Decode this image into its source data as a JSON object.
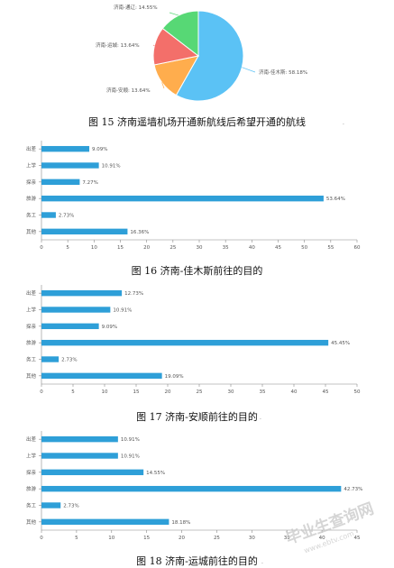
{
  "captions": {
    "fig15": "图 15 济南遥墙机场开通新航线后希望开通的航线",
    "fig16": "图 16 济南-佳木斯前往的目的",
    "fig17": "图 17 济南-安顺前往的目的",
    "fig18": "图 18 济南-运城前往的目的"
  },
  "marks": {
    "fig15": ".",
    "fig16": ".",
    "fig17": ".",
    "fig18": "."
  },
  "watermark": {
    "main": "毕业生查询网",
    "sub": "www.ebtv.com"
  },
  "chart_data": [
    {
      "type": "pie",
      "labels": [
        "济南-佳木斯",
        "济南-安顺",
        "济南-运城",
        "济南-通辽"
      ],
      "values": [
        58.18,
        13.64,
        13.64,
        14.55
      ],
      "data_labels": [
        "济南-佳木斯: 58.18%",
        "济南-安顺: 13.64%",
        "济南-运城: 13.64%",
        "济南-通辽: 14.55%"
      ],
      "colors": [
        "#5bc2f5",
        "#ffad4d",
        "#f36f6a",
        "#57d875"
      ]
    },
    {
      "type": "bar",
      "orientation": "horizontal",
      "categories": [
        "出差",
        "上学",
        "探亲",
        "旅游",
        "务工",
        "其他"
      ],
      "values": [
        9.09,
        10.91,
        7.27,
        53.64,
        2.73,
        16.36
      ],
      "data_labels": [
        "9.09%",
        "10.91%",
        "7.27%",
        "53.64%",
        "2.73%",
        "16.36%"
      ],
      "xlim": [
        0,
        60
      ],
      "xticks": [
        0,
        5,
        10,
        15,
        20,
        25,
        30,
        35,
        40,
        45,
        50,
        55,
        60
      ],
      "color": "#2e9fd8"
    },
    {
      "type": "bar",
      "orientation": "horizontal",
      "categories": [
        "出差",
        "上学",
        "探亲",
        "旅游",
        "务工",
        "其他"
      ],
      "values": [
        12.73,
        10.91,
        9.09,
        45.45,
        2.73,
        19.09
      ],
      "data_labels": [
        "12.73%",
        "10.91%",
        "9.09%",
        "45.45%",
        "2.73%",
        "19.09%"
      ],
      "xlim": [
        0,
        50
      ],
      "xticks": [
        0,
        5,
        10,
        15,
        20,
        25,
        30,
        35,
        40,
        45,
        50
      ],
      "color": "#2e9fd8"
    },
    {
      "type": "bar",
      "orientation": "horizontal",
      "categories": [
        "出差",
        "上学",
        "探亲",
        "旅游",
        "务工",
        "其他"
      ],
      "values": [
        10.91,
        10.91,
        14.55,
        42.73,
        2.73,
        18.18
      ],
      "data_labels": [
        "10.91%",
        "10.91%",
        "14.55%",
        "42.73%",
        "2.73%",
        "18.18%"
      ],
      "xlim": [
        0,
        45
      ],
      "xticks": [
        0,
        5,
        10,
        15,
        20,
        25,
        30,
        35,
        40,
        45
      ],
      "color": "#2e9fd8"
    }
  ]
}
